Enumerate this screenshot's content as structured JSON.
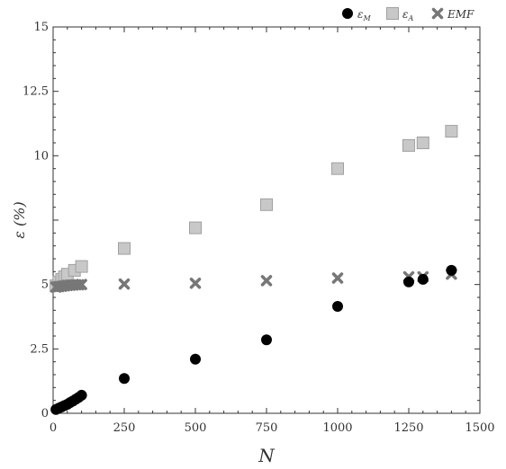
{
  "chart_data": {
    "type": "scatter",
    "xlabel": "N",
    "ylabel": "ε (%)",
    "xlim": [
      0,
      1500
    ],
    "ylim": [
      0,
      15
    ],
    "x_ticks": [
      0,
      250,
      500,
      750,
      1000,
      1250,
      1500
    ],
    "x_tick_labels": [
      "0",
      "250",
      "500",
      "750",
      "1000",
      "1250",
      "1500"
    ],
    "y_ticks": [
      0,
      2.5,
      5,
      7.5,
      10,
      12.5,
      15
    ],
    "y_tick_labels": [
      "0",
      "2.5",
      "5",
      "",
      "10",
      "12.5",
      "15"
    ],
    "grid": false,
    "legend_position": "top-right",
    "series": [
      {
        "name": "εM",
        "marker": "circle",
        "color": "#000000",
        "x": [
          10,
          20,
          30,
          40,
          50,
          60,
          70,
          80,
          90,
          100,
          250,
          500,
          750,
          1000,
          1250,
          1300,
          1400
        ],
        "y": [
          0.15,
          0.2,
          0.25,
          0.3,
          0.35,
          0.42,
          0.48,
          0.55,
          0.62,
          0.7,
          1.35,
          2.1,
          2.85,
          4.15,
          5.1,
          5.2,
          5.55
        ]
      },
      {
        "name": "εA",
        "marker": "square",
        "color": "#c8c8c8",
        "x": [
          10,
          20,
          30,
          40,
          50,
          75,
          100,
          250,
          500,
          750,
          1000,
          1250,
          1300,
          1400
        ],
        "y": [
          4.95,
          5.1,
          5.2,
          5.3,
          5.4,
          5.55,
          5.7,
          6.4,
          7.2,
          8.1,
          9.5,
          10.4,
          10.5,
          10.95
        ]
      },
      {
        "name": "EMF",
        "marker": "x",
        "color": "#777777",
        "x": [
          10,
          20,
          30,
          40,
          50,
          60,
          70,
          80,
          90,
          100,
          250,
          500,
          750,
          1000,
          1250,
          1300,
          1400
        ],
        "y": [
          4.9,
          4.92,
          4.93,
          4.95,
          4.96,
          4.97,
          4.98,
          4.99,
          4.99,
          5.0,
          5.02,
          5.05,
          5.15,
          5.25,
          5.3,
          5.3,
          5.4
        ]
      }
    ]
  },
  "legend": {
    "items": [
      {
        "base": "ε",
        "sub": "M"
      },
      {
        "base": "ε",
        "sub": "A"
      },
      {
        "base": "EMF",
        "sub": ""
      }
    ]
  }
}
